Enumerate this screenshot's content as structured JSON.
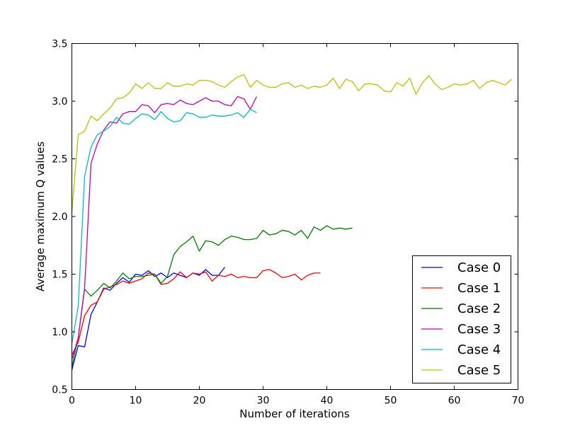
{
  "chart_data": {
    "type": "line",
    "title": "",
    "xlabel": "Number of iterations",
    "ylabel": "Average maximum Q values",
    "xlim": [
      0,
      70
    ],
    "ylim": [
      0.5,
      3.5
    ],
    "xticks": [
      0,
      10,
      20,
      30,
      40,
      50,
      60,
      70
    ],
    "yticks": [
      0.5,
      1.0,
      1.5,
      2.0,
      2.5,
      3.0,
      3.5
    ],
    "xtick_labels": [
      "0",
      "10",
      "20",
      "30",
      "40",
      "50",
      "60",
      "70"
    ],
    "ytick_labels": [
      "0.5",
      "1.0",
      "1.5",
      "2.0",
      "2.5",
      "3.0",
      "3.5"
    ],
    "grid": false,
    "legend_position": "bottom-right",
    "series": [
      {
        "name": "Case 0",
        "color": "#0000ff",
        "x": [
          0,
          1,
          2,
          3,
          4,
          5,
          6,
          7,
          8,
          9,
          10,
          11,
          12,
          13,
          14,
          15,
          16,
          17,
          18,
          19,
          20,
          21,
          22,
          23,
          24
        ],
        "values": [
          0.67,
          0.88,
          0.87,
          1.15,
          1.26,
          1.38,
          1.36,
          1.42,
          1.47,
          1.43,
          1.5,
          1.49,
          1.53,
          1.48,
          1.51,
          1.47,
          1.51,
          1.49,
          1.47,
          1.51,
          1.49,
          1.54,
          1.49,
          1.49,
          1.56
        ]
      },
      {
        "name": "Case 1",
        "color": "#ff0000",
        "x": [
          0,
          1,
          2,
          3,
          4,
          5,
          6,
          7,
          8,
          9,
          10,
          11,
          12,
          13,
          14,
          15,
          16,
          17,
          18,
          19,
          20,
          21,
          22,
          23,
          24,
          25,
          26,
          27,
          28,
          29,
          30,
          31,
          32,
          33,
          34,
          35,
          36,
          37,
          38,
          39
        ],
        "values": [
          0.8,
          0.91,
          1.14,
          1.23,
          1.26,
          1.37,
          1.39,
          1.41,
          1.44,
          1.42,
          1.44,
          1.46,
          1.51,
          1.5,
          1.41,
          1.42,
          1.46,
          1.52,
          1.47,
          1.51,
          1.5,
          1.52,
          1.44,
          1.49,
          1.48,
          1.5,
          1.47,
          1.48,
          1.47,
          1.47,
          1.53,
          1.54,
          1.51,
          1.47,
          1.48,
          1.5,
          1.45,
          1.49,
          1.51,
          1.51
        ]
      },
      {
        "name": "Case 2",
        "color": "#008000",
        "x": [
          0,
          1,
          2,
          3,
          4,
          5,
          6,
          7,
          8,
          9,
          10,
          11,
          12,
          13,
          14,
          15,
          16,
          17,
          18,
          19,
          20,
          21,
          22,
          23,
          24,
          25,
          26,
          27,
          28,
          29,
          30,
          31,
          32,
          33,
          34,
          35,
          36,
          37,
          38,
          39,
          40,
          41,
          42,
          43,
          44
        ],
        "values": [
          0.7,
          0.95,
          1.37,
          1.31,
          1.36,
          1.42,
          1.38,
          1.44,
          1.51,
          1.46,
          1.48,
          1.48,
          1.49,
          1.5,
          1.42,
          1.48,
          1.67,
          1.74,
          1.78,
          1.83,
          1.7,
          1.79,
          1.78,
          1.75,
          1.8,
          1.83,
          1.82,
          1.8,
          1.8,
          1.81,
          1.88,
          1.84,
          1.85,
          1.88,
          1.87,
          1.84,
          1.88,
          1.81,
          1.91,
          1.88,
          1.92,
          1.89,
          1.9,
          1.89,
          1.9
        ]
      },
      {
        "name": "Case 3",
        "color": "#bf00bf",
        "x": [
          0,
          1,
          2,
          3,
          4,
          5,
          6,
          7,
          8,
          9,
          10,
          11,
          12,
          13,
          14,
          15,
          16,
          17,
          18,
          19,
          20,
          21,
          22,
          23,
          24,
          25,
          26,
          27,
          28,
          29
        ],
        "values": [
          0.76,
          0.95,
          1.38,
          2.46,
          2.63,
          2.75,
          2.82,
          2.81,
          2.89,
          2.91,
          2.91,
          2.97,
          2.96,
          2.9,
          2.97,
          2.98,
          2.97,
          3.01,
          2.98,
          2.97,
          3.0,
          3.03,
          3.0,
          3.0,
          2.97,
          2.96,
          3.04,
          3.02,
          2.93,
          3.04
        ]
      },
      {
        "name": "Case 4",
        "color": "#00bfbf",
        "x": [
          0,
          1,
          2,
          3,
          4,
          5,
          6,
          7,
          8,
          9,
          10,
          11,
          12,
          13,
          14,
          15,
          16,
          17,
          18,
          19,
          20,
          21,
          22,
          23,
          24,
          25,
          26,
          27,
          28,
          29
        ],
        "values": [
          0.9,
          1.22,
          2.35,
          2.6,
          2.71,
          2.74,
          2.78,
          2.86,
          2.81,
          2.8,
          2.85,
          2.89,
          2.88,
          2.84,
          2.91,
          2.85,
          2.82,
          2.83,
          2.9,
          2.89,
          2.86,
          2.86,
          2.88,
          2.87,
          2.87,
          2.88,
          2.9,
          2.86,
          2.93,
          2.9
        ]
      },
      {
        "name": "Case 5",
        "color": "#bfbf00",
        "x": [
          0,
          1,
          2,
          3,
          4,
          5,
          6,
          7,
          8,
          9,
          10,
          11,
          12,
          13,
          14,
          15,
          16,
          17,
          18,
          19,
          20,
          21,
          22,
          23,
          24,
          25,
          26,
          27,
          28,
          29,
          30,
          31,
          32,
          33,
          34,
          35,
          36,
          37,
          38,
          39,
          40,
          41,
          42,
          43,
          44,
          45,
          46,
          47,
          48,
          49,
          50,
          51,
          52,
          53,
          54,
          55,
          56,
          57,
          58,
          59,
          60,
          61,
          62,
          63,
          64,
          65,
          66,
          67,
          68,
          69
        ],
        "values": [
          2.04,
          2.71,
          2.74,
          2.87,
          2.83,
          2.89,
          2.94,
          3.02,
          3.03,
          3.07,
          3.15,
          3.11,
          3.16,
          3.11,
          3.11,
          3.16,
          3.13,
          3.13,
          3.15,
          3.14,
          3.18,
          3.18,
          3.17,
          3.14,
          3.12,
          3.17,
          3.21,
          3.23,
          3.12,
          3.18,
          3.14,
          3.12,
          3.12,
          3.15,
          3.16,
          3.12,
          3.14,
          3.11,
          3.13,
          3.12,
          3.14,
          3.2,
          3.11,
          3.19,
          3.17,
          3.09,
          3.15,
          3.15,
          3.14,
          3.09,
          3.08,
          3.16,
          3.13,
          3.2,
          3.06,
          3.16,
          3.22,
          3.15,
          3.1,
          3.12,
          3.15,
          3.14,
          3.15,
          3.18,
          3.11,
          3.16,
          3.18,
          3.16,
          3.14,
          3.19
        ]
      }
    ]
  }
}
